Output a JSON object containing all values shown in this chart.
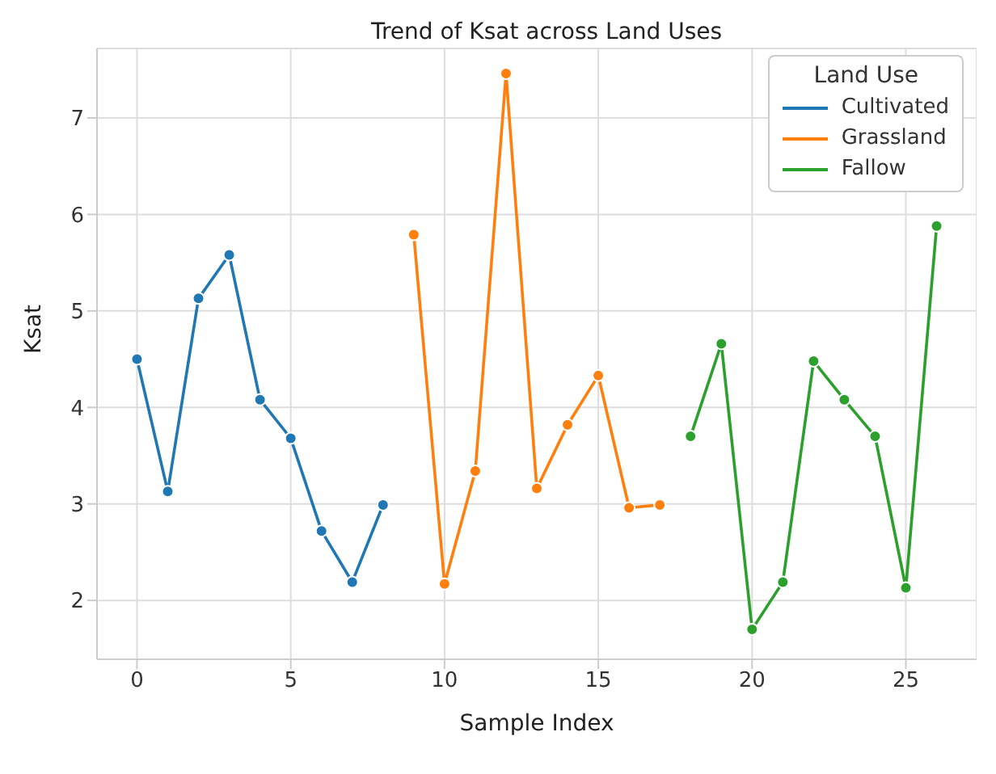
{
  "chart_data": {
    "type": "line",
    "title": "Trend of Ksat across Land Uses",
    "xlabel": "Sample Index",
    "ylabel": "Ksat",
    "legend_title": "Land Use",
    "legend": "top right",
    "grid": true,
    "marker": "circle",
    "line_style": "solid",
    "xlim": [
      -1.3,
      27.3
    ],
    "xticks": [
      0,
      5,
      10,
      15,
      20,
      25
    ],
    "ylim": [
      1.39,
      7.72
    ],
    "yticks": [
      2,
      3,
      4,
      5,
      6,
      7
    ],
    "series": [
      {
        "name": "Cultivated",
        "color": "#1f77b4",
        "x": [
          0,
          1,
          2,
          3,
          4,
          5,
          6,
          7,
          8
        ],
        "values": [
          4.5,
          3.13,
          5.13,
          5.58,
          4.08,
          3.68,
          2.72,
          2.19,
          2.99
        ]
      },
      {
        "name": "Grassland",
        "color": "#ff7f0e",
        "x": [
          9,
          10,
          11,
          12,
          13,
          14,
          15,
          16,
          17
        ],
        "values": [
          5.79,
          2.17,
          3.34,
          7.46,
          3.16,
          3.82,
          4.33,
          2.96,
          2.99
        ]
      },
      {
        "name": "Fallow",
        "color": "#2ca02c",
        "x": [
          18,
          19,
          20,
          21,
          22,
          23,
          24,
          25,
          26
        ],
        "values": [
          3.7,
          4.66,
          1.7,
          2.19,
          4.48,
          4.08,
          3.7,
          2.13,
          5.88
        ]
      }
    ]
  }
}
